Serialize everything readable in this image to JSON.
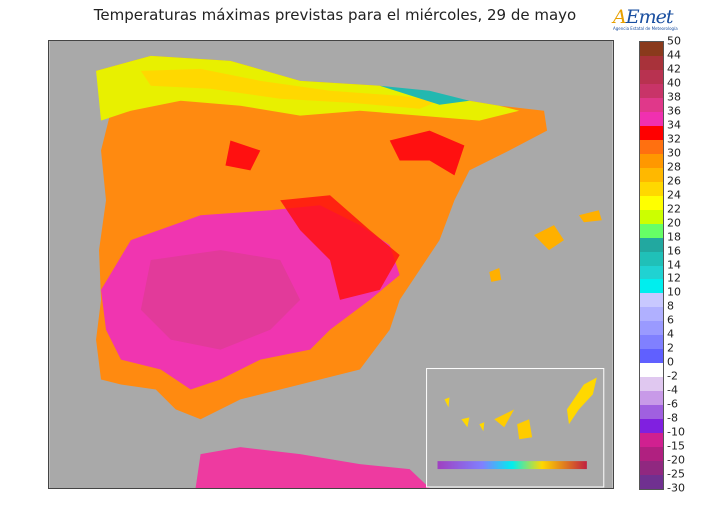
{
  "title": "Temperaturas máximas previstas para el miércoles, 29 de mayo",
  "logo": {
    "brand": "AEmet",
    "subtitle": "Agencia Estatal de Meteorología"
  },
  "legend": {
    "labels": [
      "50",
      "44",
      "42",
      "40",
      "38",
      "36",
      "34",
      "32",
      "30",
      "28",
      "26",
      "24",
      "22",
      "20",
      "18",
      "16",
      "14",
      "12",
      "10",
      "8",
      "6",
      "4",
      "2",
      "0",
      "-2",
      "-4",
      "-6",
      "-8",
      "-10",
      "-15",
      "-20",
      "-25",
      "-30"
    ],
    "colors": [
      "#8a3a1c",
      "#a8323a",
      "#b83250",
      "#c83468",
      "#e0388a",
      "#f030b0",
      "#ff0000",
      "#ff7010",
      "#ff9800",
      "#ffb800",
      "#ffd800",
      "#ffff00",
      "#ccff00",
      "#66ff66",
      "#22a8a0",
      "#20c0b8",
      "#20d2d2",
      "#00eeee",
      "#c8c8ff",
      "#b0b0ff",
      "#9a9aff",
      "#8080ff",
      "#6060ff",
      "#ffffff",
      "#e0c8f0",
      "#c89ae8",
      "#a060e0",
      "#8020e0",
      "#d02090",
      "#b02080",
      "#902880",
      "#703090"
    ]
  }
}
